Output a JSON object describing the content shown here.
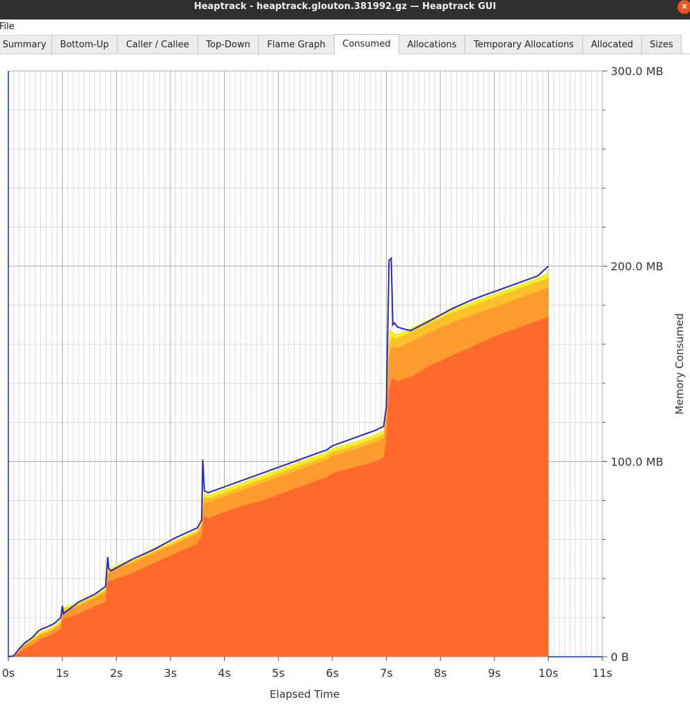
{
  "window": {
    "title": "Heaptrack - heaptrack.glouton.381992.gz — Heaptrack GUI",
    "close_glyph": "×"
  },
  "menu": {
    "file_label": "File"
  },
  "tabs": [
    {
      "label": "Summary",
      "active": false
    },
    {
      "label": "Bottom-Up",
      "active": false
    },
    {
      "label": "Caller / Callee",
      "active": false
    },
    {
      "label": "Top-Down",
      "active": false
    },
    {
      "label": "Flame Graph",
      "active": false
    },
    {
      "label": "Consumed",
      "active": true
    },
    {
      "label": "Allocations",
      "active": false
    },
    {
      "label": "Temporary Allocations",
      "active": false
    },
    {
      "label": "Allocated",
      "active": false
    },
    {
      "label": "Sizes",
      "active": false
    }
  ],
  "chart_data": {
    "type": "area",
    "xlabel": "Elapsed Time",
    "ylabel": "Memory Consumed",
    "xlim": [
      0,
      11
    ],
    "ylim": [
      0,
      300
    ],
    "y_unit": "MB",
    "x_ticks": [
      "0s",
      "1s",
      "2s",
      "3s",
      "4s",
      "5s",
      "6s",
      "7s",
      "8s",
      "9s",
      "10s",
      "11s"
    ],
    "y_ticks": [
      {
        "value": 0,
        "label": "0 B"
      },
      {
        "value": 100,
        "label": "100.0 MB"
      },
      {
        "value": 200,
        "label": "200.0 MB"
      },
      {
        "value": 300,
        "label": "300.0 MB"
      }
    ],
    "grid": true,
    "colors": {
      "base": "#ff6a2a",
      "layer2": "#ff9a2e",
      "layer3": "#ffc02a",
      "layer4": "#f1f02a",
      "total_line": "#0033dd",
      "spike_line": "#e02020"
    },
    "series": [
      {
        "x": [
          0,
          0.1,
          0.2,
          0.3,
          0.45,
          0.6,
          0.7,
          0.85,
          0.98,
          0.99,
          1.3,
          1.6,
          1.8,
          1.83,
          1.9,
          2.3,
          2.7,
          3.1,
          3.5,
          3.58,
          3.62,
          3.7,
          3.9,
          4.3,
          4.7,
          5.1,
          5.5,
          5.9,
          6.0,
          6.4,
          6.8,
          6.95,
          7.0,
          7.05,
          7.1,
          7.2,
          7.5,
          7.8,
          8.2,
          8.6,
          9.0,
          9.4,
          9.8,
          10.0
        ],
        "values": [
          0,
          0,
          2,
          4,
          6,
          9,
          10,
          12,
          14,
          19,
          22,
          26,
          28,
          38,
          39,
          43,
          48,
          53,
          58,
          62,
          72,
          71,
          73,
          77,
          80,
          84,
          88,
          92,
          94,
          97,
          100,
          102,
          112,
          136,
          143,
          141,
          144,
          149,
          154,
          159,
          164,
          168,
          172,
          174
        ]
      },
      {
        "x": [
          0,
          0.1,
          0.2,
          0.3,
          0.45,
          0.6,
          0.7,
          0.85,
          0.98,
          0.99,
          1.3,
          1.6,
          1.8,
          1.83,
          1.9,
          2.3,
          2.7,
          3.1,
          3.5,
          3.58,
          3.62,
          3.7,
          3.9,
          4.3,
          4.7,
          5.1,
          5.5,
          5.9,
          6.0,
          6.4,
          6.8,
          6.95,
          7.0,
          7.05,
          7.1,
          7.2,
          7.5,
          7.8,
          8.2,
          8.6,
          9.0,
          9.4,
          9.8,
          10.0
        ],
        "values": [
          0,
          0,
          3,
          6,
          8,
          11,
          12,
          14,
          17,
          23,
          26,
          30,
          33,
          42,
          44,
          48,
          53,
          58,
          63,
          67,
          79,
          79,
          81,
          85,
          89,
          93,
          97,
          101,
          103,
          106,
          110,
          112,
          123,
          154,
          159,
          158,
          162,
          166,
          171,
          175,
          179,
          183,
          187,
          189
        ]
      },
      {
        "x": [
          0,
          0.1,
          0.2,
          0.3,
          0.45,
          0.6,
          0.7,
          0.85,
          0.98,
          0.99,
          1.3,
          1.6,
          1.8,
          1.83,
          1.9,
          2.3,
          2.7,
          3.1,
          3.5,
          3.58,
          3.62,
          3.7,
          3.9,
          4.3,
          4.7,
          5.1,
          5.5,
          5.9,
          6.0,
          6.4,
          6.8,
          6.95,
          7.0,
          7.05,
          7.1,
          7.2,
          7.5,
          7.8,
          8.2,
          8.6,
          9.0,
          9.4,
          9.8,
          10.0
        ],
        "values": [
          0,
          0,
          3,
          6,
          9,
          12,
          13,
          15,
          18,
          24,
          27,
          31,
          34,
          43,
          45,
          49,
          54,
          59,
          64,
          68,
          82,
          81,
          83,
          87,
          91,
          95,
          99,
          103,
          105,
          108,
          112,
          114,
          125,
          160,
          164,
          163,
          167,
          171,
          176,
          180,
          184,
          188,
          192,
          194
        ]
      },
      {
        "x": [
          0,
          0.1,
          0.2,
          0.3,
          0.45,
          0.6,
          0.7,
          0.85,
          0.98,
          0.99,
          1.3,
          1.6,
          1.8,
          1.83,
          1.9,
          2.3,
          2.7,
          3.1,
          3.5,
          3.58,
          3.62,
          3.7,
          3.9,
          4.3,
          4.7,
          5.1,
          5.5,
          5.9,
          6.0,
          6.4,
          6.8,
          6.95,
          7.0,
          7.05,
          7.1,
          7.2,
          7.5,
          7.8,
          8.2,
          8.6,
          9.0,
          9.4,
          9.8,
          10.0
        ],
        "values": [
          0,
          0,
          4,
          7,
          10,
          13,
          14,
          16,
          19,
          25,
          28,
          32,
          35,
          44,
          46,
          50,
          55,
          60,
          65,
          69,
          84,
          83,
          85,
          89,
          93,
          97,
          101,
          105,
          107,
          110,
          114,
          116,
          127,
          168,
          167,
          165,
          169,
          173,
          178,
          182,
          186,
          190,
          194,
          197
        ]
      }
    ],
    "total": {
      "x": [
        0,
        0.1,
        0.2,
        0.3,
        0.45,
        0.55,
        0.6,
        0.7,
        0.85,
        0.97,
        1.0,
        1.02,
        1.3,
        1.6,
        1.8,
        1.84,
        1.86,
        1.9,
        2.3,
        2.7,
        3.1,
        3.5,
        3.58,
        3.6,
        3.63,
        3.7,
        3.9,
        4.3,
        4.7,
        5.1,
        5.5,
        5.9,
        6.0,
        6.4,
        6.8,
        6.95,
        7.0,
        7.05,
        7.09,
        7.12,
        7.15,
        7.2,
        7.3,
        7.45,
        7.8,
        8.2,
        8.6,
        9.0,
        9.4,
        9.8,
        10.0
      ],
      "values": [
        0,
        0.5,
        4,
        7,
        10,
        13,
        14,
        15,
        17,
        20,
        26,
        22,
        28,
        32,
        36,
        51,
        45,
        44,
        50,
        55,
        61,
        66,
        70,
        101,
        85,
        84,
        86,
        90,
        94,
        98,
        102,
        106,
        108,
        112,
        116,
        118,
        128,
        203,
        204,
        170,
        171,
        169,
        168,
        167,
        172,
        178,
        183,
        187,
        191,
        195,
        200
      ]
    }
  }
}
